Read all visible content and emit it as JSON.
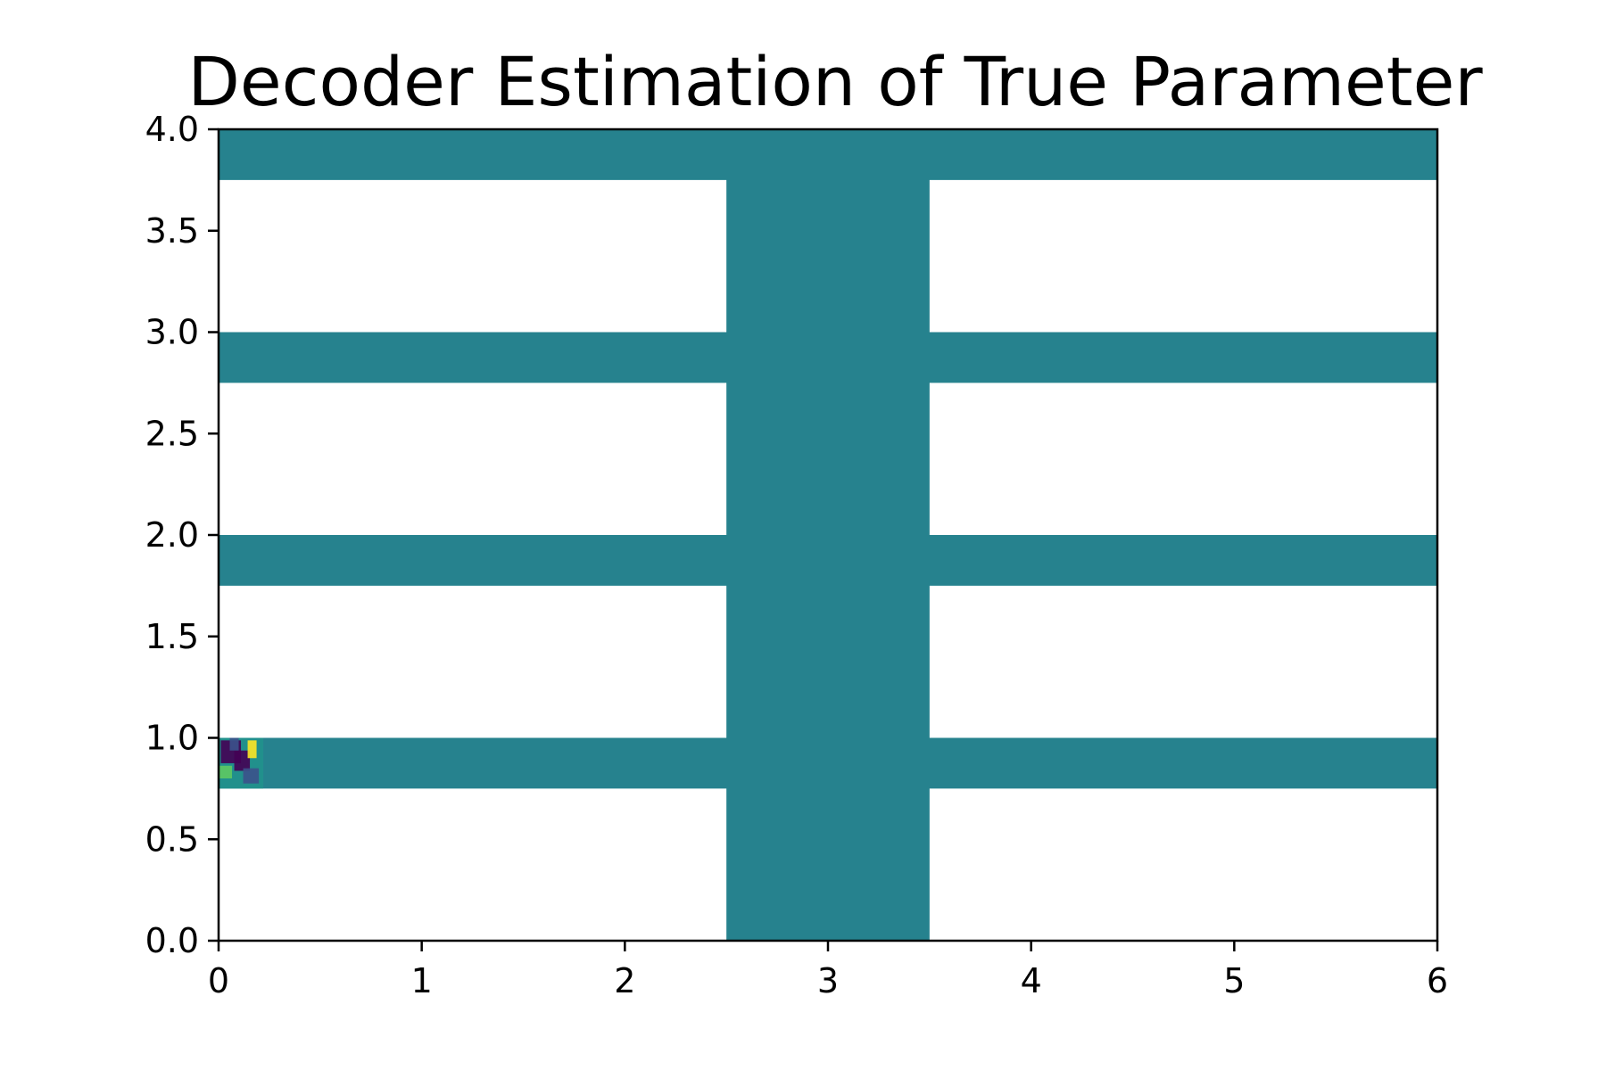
{
  "chart_data": {
    "type": "heatmap",
    "title": "Decoder Estimation of True Parameter",
    "xlabel": "",
    "ylabel": "",
    "xlim": [
      0,
      6
    ],
    "ylim": [
      0,
      4
    ],
    "x_ticks": [
      "0",
      "1",
      "2",
      "3",
      "4",
      "5",
      "6"
    ],
    "y_ticks": [
      "0.0",
      "0.5",
      "1.0",
      "1.5",
      "2.0",
      "2.5",
      "3.0",
      "3.5",
      "4.0"
    ],
    "x_tick_values": [
      0,
      1,
      2,
      3,
      4,
      5,
      6
    ],
    "y_tick_values": [
      0,
      0.5,
      1,
      1.5,
      2,
      2.5,
      3,
      3.5,
      4
    ],
    "grid": false,
    "colormap": "viridis",
    "fill_color": "#26828e",
    "background_color": "#ffffff",
    "regions": [
      {
        "name": "vertical-channel",
        "x": [
          2.5,
          3.5
        ],
        "y": [
          0,
          4
        ]
      },
      {
        "name": "horizontal-channel-top",
        "x": [
          0,
          6
        ],
        "y": [
          3.75,
          4
        ]
      },
      {
        "name": "horizontal-channel-3",
        "x": [
          0,
          6
        ],
        "y": [
          2.75,
          3
        ]
      },
      {
        "name": "horizontal-channel-2",
        "x": [
          0,
          6
        ],
        "y": [
          1.75,
          2
        ]
      },
      {
        "name": "horizontal-channel-1",
        "x": [
          0,
          6
        ],
        "y": [
          0.75,
          1
        ]
      }
    ],
    "anomaly": {
      "x": [
        0,
        0.22
      ],
      "y": [
        0.75,
        1.0
      ],
      "colors": [
        "#440154",
        "#3b528b",
        "#21918c",
        "#5ec962",
        "#fde725"
      ]
    }
  }
}
